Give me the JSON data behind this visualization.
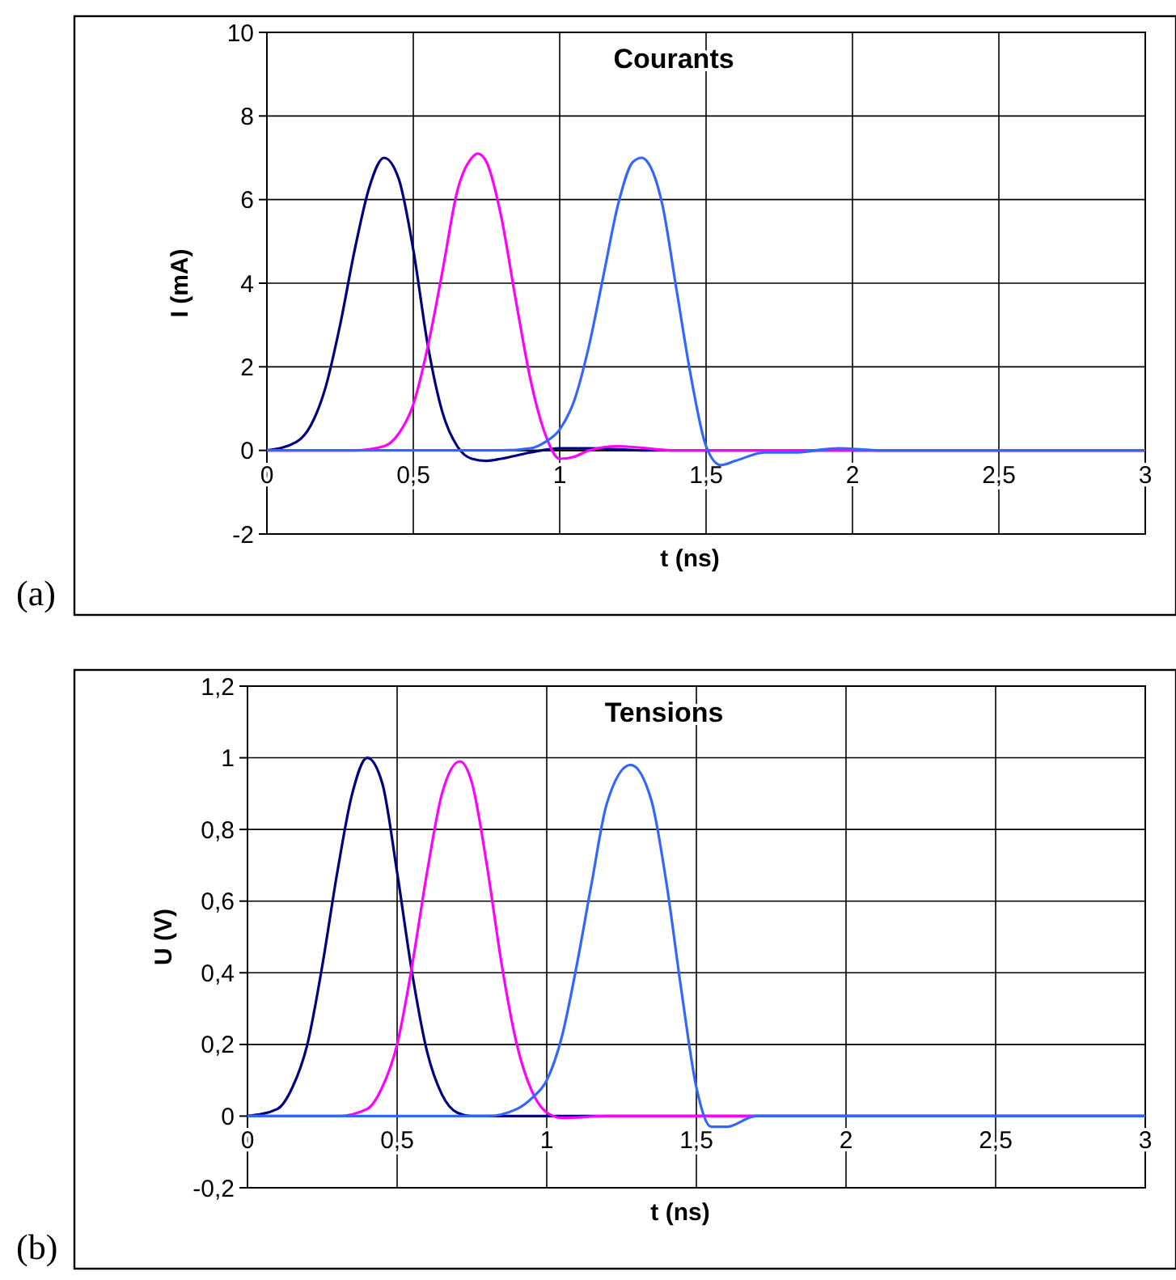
{
  "chart_data": [
    {
      "type": "line",
      "title": "Courants",
      "xlabel": "t (ns)",
      "ylabel": "I (mA)",
      "annotations": [
        "(a)"
      ],
      "grid": true,
      "marker": "none",
      "line_style": "solid",
      "xlim": [
        0,
        3
      ],
      "ylim": [
        -2,
        10
      ],
      "xticks": [
        0,
        {
          "value": 0.5,
          "label": "0,5"
        },
        1,
        {
          "value": 1.5,
          "label": "1,5"
        },
        2,
        {
          "value": 2.5,
          "label": "2,5"
        },
        3
      ],
      "yticks": [
        -2,
        0,
        2,
        4,
        6,
        8,
        10
      ],
      "series": [
        {
          "color": "#000080",
          "x": [
            0,
            0.1,
            0.15,
            0.2,
            0.25,
            0.3,
            0.35,
            0.4,
            0.45,
            0.5,
            0.55,
            0.6,
            0.65,
            0.7,
            0.75,
            0.8,
            0.9,
            1.0,
            1.1,
            1.3,
            1.5,
            2,
            2.5,
            3
          ],
          "values": [
            0,
            0.2,
            0.6,
            1.5,
            3,
            4.8,
            6.3,
            7,
            6.5,
            4.8,
            2.5,
            0.9,
            0.1,
            -0.2,
            -0.25,
            -0.2,
            -0.05,
            0.05,
            0.05,
            0,
            0,
            0,
            0,
            0
          ]
        },
        {
          "color": "#ff00ff",
          "x": [
            0,
            0.3,
            0.4,
            0.45,
            0.5,
            0.55,
            0.6,
            0.65,
            0.7,
            0.72,
            0.75,
            0.8,
            0.85,
            0.9,
            0.95,
            1.0,
            1.05,
            1.1,
            1.2,
            1.4,
            2,
            3
          ],
          "values": [
            0,
            0,
            0.1,
            0.4,
            1.1,
            2.5,
            4.3,
            6.2,
            7.0,
            7.1,
            6.9,
            5.6,
            3.6,
            1.7,
            0.4,
            -0.2,
            -0.15,
            0,
            0.1,
            0,
            0,
            0
          ]
        },
        {
          "color": "#3366ff",
          "x": [
            0,
            0.8,
            0.9,
            0.95,
            1.0,
            1.05,
            1.1,
            1.15,
            1.2,
            1.25,
            1.28,
            1.3,
            1.35,
            1.4,
            1.45,
            1.5,
            1.55,
            1.6,
            1.7,
            1.8,
            1.95,
            2.1,
            2.5,
            3
          ],
          "values": [
            0,
            0,
            0.05,
            0.2,
            0.5,
            1.2,
            2.5,
            4.2,
            5.9,
            6.9,
            7,
            6.9,
            5.9,
            3.8,
            1.7,
            0.1,
            -0.35,
            -0.25,
            -0.05,
            -0.05,
            0.05,
            0,
            0,
            0
          ]
        }
      ]
    },
    {
      "type": "line",
      "title": "Tensions",
      "xlabel": "t (ns)",
      "ylabel": "U (V)",
      "annotations": [
        "(b)"
      ],
      "grid": true,
      "marker": "none",
      "line_style": "solid",
      "xlim": [
        0,
        3
      ],
      "ylim": [
        -0.2,
        1.2
      ],
      "xticks": [
        0,
        {
          "value": 0.5,
          "label": "0,5"
        },
        1,
        {
          "value": 1.5,
          "label": "1,5"
        },
        2,
        {
          "value": 2.5,
          "label": "2,5"
        },
        3
      ],
      "yticks": [
        {
          "value": -0.2,
          "label": "-0,2"
        },
        0,
        {
          "value": 0.2,
          "label": "0,2"
        },
        {
          "value": 0.4,
          "label": "0,4"
        },
        {
          "value": 0.6,
          "label": "0,6"
        },
        {
          "value": 0.8,
          "label": "0,8"
        },
        1,
        {
          "value": 1.2,
          "label": "1,2"
        }
      ],
      "series": [
        {
          "color": "#000080",
          "x": [
            0,
            0.1,
            0.15,
            0.2,
            0.25,
            0.3,
            0.35,
            0.4,
            0.45,
            0.5,
            0.55,
            0.6,
            0.65,
            0.7,
            0.75,
            0.8,
            1,
            3
          ],
          "values": [
            0,
            0.02,
            0.08,
            0.2,
            0.42,
            0.68,
            0.9,
            1,
            0.93,
            0.68,
            0.4,
            0.18,
            0.06,
            0.01,
            0,
            0,
            0,
            0
          ]
        },
        {
          "color": "#ff00ff",
          "x": [
            0,
            0.3,
            0.4,
            0.45,
            0.5,
            0.55,
            0.6,
            0.65,
            0.71,
            0.75,
            0.8,
            0.85,
            0.9,
            0.95,
            1.0,
            1.05,
            1.2,
            3
          ],
          "values": [
            0,
            0,
            0.02,
            0.08,
            0.2,
            0.42,
            0.68,
            0.9,
            0.99,
            0.93,
            0.7,
            0.42,
            0.2,
            0.07,
            0.01,
            -0.005,
            0,
            0
          ]
        },
        {
          "color": "#3366ff",
          "x": [
            0,
            0.8,
            0.9,
            0.95,
            1.0,
            1.05,
            1.1,
            1.15,
            1.2,
            1.28,
            1.35,
            1.4,
            1.45,
            1.5,
            1.55,
            1.6,
            1.7,
            1.8,
            3
          ],
          "values": [
            0,
            0,
            0.02,
            0.05,
            0.1,
            0.22,
            0.42,
            0.65,
            0.87,
            0.98,
            0.88,
            0.65,
            0.35,
            0.08,
            -0.03,
            -0.03,
            0,
            0,
            0
          ]
        }
      ]
    }
  ]
}
